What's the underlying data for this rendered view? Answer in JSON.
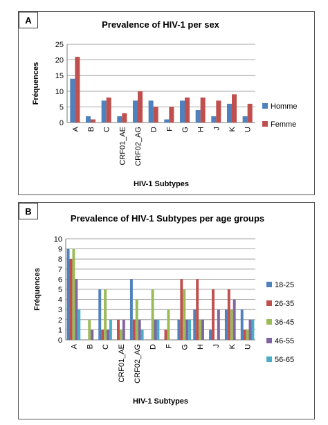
{
  "chart_data": [
    {
      "panel_label": "A",
      "type": "bar",
      "title": "Prevalence of HIV-1 per sex",
      "xlabel": "HIV-1 Subtypes",
      "ylabel": "Fréquences",
      "ylim": [
        0,
        25
      ],
      "yticks": [
        0,
        5,
        10,
        15,
        20,
        25
      ],
      "grid": true,
      "legend": "right",
      "categories": [
        "A",
        "B",
        "C",
        "CRF01_AE",
        "CRF02_AG",
        "D",
        "F",
        "G",
        "H",
        "J",
        "K",
        "U"
      ],
      "series": [
        {
          "name": "Homme",
          "color": "#4f81bd",
          "values": [
            14,
            2,
            7,
            2,
            7,
            7,
            1,
            7,
            4,
            2,
            6,
            2
          ]
        },
        {
          "name": "Femme",
          "color": "#c0504d",
          "values": [
            21,
            1,
            8,
            3,
            10,
            5,
            5,
            8,
            8,
            7,
            9,
            6
          ]
        }
      ]
    },
    {
      "panel_label": "B",
      "type": "bar",
      "title": "Prevalence of HIV-1 Subtypes per age groups",
      "xlabel": "HIV-1 Subtypes",
      "ylabel": "Fréquences",
      "ylim": [
        0,
        10
      ],
      "yticks": [
        0,
        1,
        2,
        3,
        4,
        5,
        6,
        7,
        8,
        9,
        10
      ],
      "grid": true,
      "legend": "right",
      "categories": [
        "A",
        "B",
        "C",
        "CRF01_AE",
        "CRF02_AG",
        "D",
        "F",
        "G",
        "H",
        "J",
        "K",
        "U"
      ],
      "series": [
        {
          "name": "18-25",
          "color": "#4f81bd",
          "values": [
            9,
            0,
            5,
            0,
            6,
            0,
            0,
            2,
            3,
            1,
            3,
            3
          ]
        },
        {
          "name": "26-35",
          "color": "#c0504d",
          "values": [
            8,
            0,
            1,
            2,
            2,
            0,
            1,
            6,
            6,
            5,
            5,
            1
          ]
        },
        {
          "name": "36-45",
          "color": "#9bbb59",
          "values": [
            9,
            2,
            5,
            1,
            4,
            5,
            3,
            5,
            2,
            0,
            3,
            1
          ]
        },
        {
          "name": "46-55",
          "color": "#8064a2",
          "values": [
            6,
            1,
            1,
            2,
            2,
            2,
            0,
            2,
            2,
            3,
            4,
            2
          ]
        },
        {
          "name": "56-65",
          "color": "#4bacc6",
          "values": [
            3,
            0,
            2,
            0,
            1,
            2,
            0,
            2,
            0,
            0,
            0,
            2
          ]
        }
      ]
    }
  ]
}
